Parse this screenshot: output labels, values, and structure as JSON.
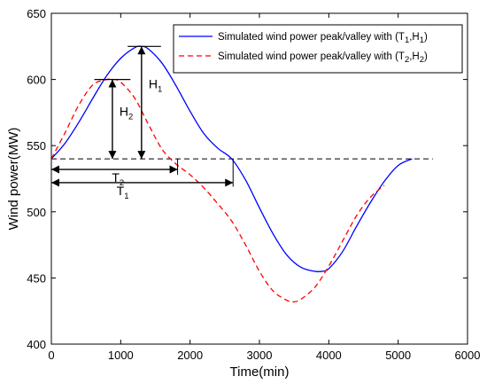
{
  "chart_data": {
    "type": "line",
    "xlabel": "Time(min)",
    "ylabel": "Wind power(MW)",
    "xlim": [
      0,
      6000
    ],
    "ylim": [
      400,
      650
    ],
    "x_ticks": [
      0,
      1000,
      2000,
      3000,
      4000,
      5000,
      6000
    ],
    "y_ticks": [
      400,
      450,
      500,
      550,
      600,
      650
    ],
    "x_tick_labels": [
      "0",
      "1000",
      "2000",
      "3000",
      "4000",
      "5000",
      "6000"
    ],
    "y_tick_labels": [
      "400",
      "450",
      "500",
      "550",
      "600",
      "650"
    ],
    "grid": false,
    "legend_position": "top-right",
    "series": [
      {
        "name": "Simulated wind power peak/valley with (T1,H1)",
        "legend_main": "Simulated wind power peak/valley with (T",
        "legend_sub1": "1",
        "legend_mid": ",H",
        "legend_sub2": "1",
        "legend_end": ")",
        "color": "#0000ff",
        "style": "solid",
        "x": [
          0,
          200,
          400,
          600,
          800,
          1000,
          1200,
          1300,
          1400,
          1600,
          1800,
          2000,
          2200,
          2400,
          2600,
          2800,
          3000,
          3200,
          3400,
          3600,
          3800,
          3900,
          4000,
          4200,
          4400,
          4600,
          4800,
          5000,
          5200
        ],
        "y": [
          540,
          552,
          568,
          586,
          603,
          616,
          624,
          625,
          623,
          612,
          595,
          576,
          559,
          548,
          540,
          524,
          503,
          483,
          467,
          458,
          455,
          455,
          457,
          470,
          489,
          507,
          523,
          535,
          540
        ]
      },
      {
        "name": "Simulated wind power peak/valley with (T2,H2)",
        "legend_main": "Simulated wind power peak/valley with (T",
        "legend_sub1": "2",
        "legend_mid": ",H",
        "legend_sub2": "2",
        "legend_end": ")",
        "color": "#ff0000",
        "style": "dashed",
        "x": [
          0,
          200,
          400,
          600,
          800,
          900,
          1000,
          1200,
          1400,
          1600,
          1800,
          2000,
          2200,
          2400,
          2600,
          2800,
          3000,
          3200,
          3400,
          3500,
          3600,
          3800,
          4000,
          4200,
          4400,
          4600,
          4800
        ],
        "y": [
          540,
          560,
          581,
          596,
          600,
          600,
          598,
          586,
          566,
          547,
          536,
          528,
          518,
          506,
          493,
          475,
          455,
          440,
          433,
          432,
          434,
          443,
          459,
          478,
          497,
          511,
          520
        ]
      }
    ],
    "baseline": {
      "y": 540,
      "x_start": 0,
      "x_end": 5500,
      "color": "#000000",
      "style": "dashed"
    },
    "annotations": {
      "T1": {
        "main": "T",
        "sub": "1",
        "x_start": 0,
        "x_end": 2620,
        "y_arrow": 522,
        "y_label": 512
      },
      "T2": {
        "main": "T",
        "sub": "2",
        "x_start": 0,
        "x_end": 1820,
        "y_arrow": 532,
        "y_label": 538
      },
      "H1": {
        "main": "H",
        "sub": "1",
        "x": 1300,
        "y_bottom": 540,
        "y_top": 625,
        "cap_x0": 1100,
        "cap_x1": 1580
      },
      "H2": {
        "main": "H",
        "sub": "2",
        "x": 880,
        "y_bottom": 540,
        "y_top": 600,
        "cap_x0": 620,
        "cap_x1": 1140
      }
    }
  }
}
